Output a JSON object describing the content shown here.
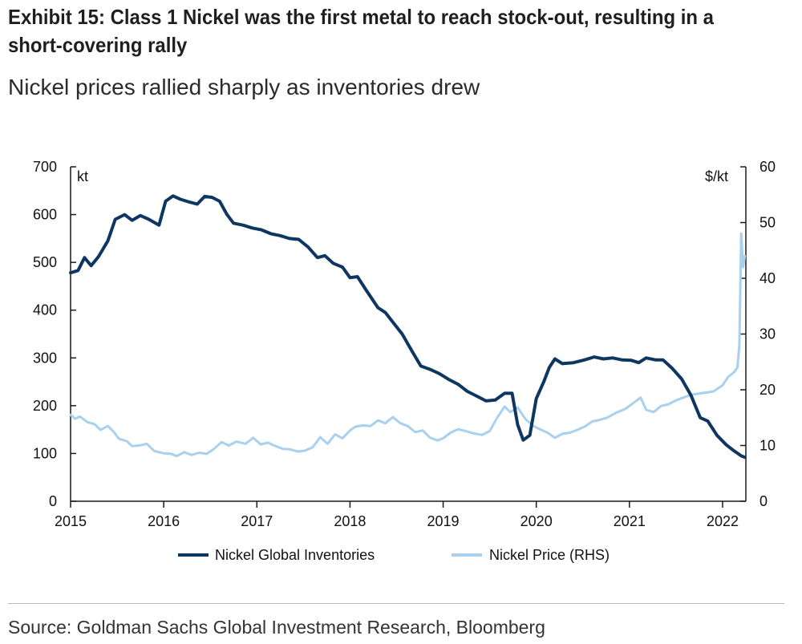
{
  "title": "Exhibit 15: Class 1 Nickel was the first metal to reach stock-out, resulting in a short-covering rally",
  "subtitle": "Nickel prices rallied sharply as inventories drew",
  "source": "Source: Goldman Sachs Global Investment Research, Bloomberg",
  "colors": {
    "inventories": "#0d3660",
    "price": "#a9d0ef",
    "axis": "#1a1a1a"
  },
  "chart_data": {
    "type": "line",
    "xlabel": "",
    "x_range": [
      2015.0,
      2022.25
    ],
    "x_ticks": [
      2015,
      2016,
      2017,
      2018,
      2019,
      2020,
      2021,
      2022
    ],
    "y_left": {
      "unit": "kt",
      "range": [
        0,
        700
      ],
      "ticks": [
        0,
        100,
        200,
        300,
        400,
        500,
        600,
        700
      ]
    },
    "y_right": {
      "unit": "$/kt",
      "range": [
        0,
        60
      ],
      "ticks": [
        0,
        10,
        20,
        30,
        40,
        50,
        60
      ]
    },
    "legend_position": "bottom",
    "series": [
      {
        "name": "Nickel Global Inventories",
        "axis": "left",
        "points": [
          [
            2015.0,
            478
          ],
          [
            2015.08,
            483
          ],
          [
            2015.15,
            510
          ],
          [
            2015.22,
            493
          ],
          [
            2015.3,
            512
          ],
          [
            2015.4,
            545
          ],
          [
            2015.48,
            590
          ],
          [
            2015.58,
            600
          ],
          [
            2015.66,
            588
          ],
          [
            2015.75,
            598
          ],
          [
            2015.84,
            590
          ],
          [
            2015.95,
            578
          ],
          [
            2016.02,
            628
          ],
          [
            2016.1,
            639
          ],
          [
            2016.18,
            632
          ],
          [
            2016.28,
            626
          ],
          [
            2016.36,
            622
          ],
          [
            2016.44,
            638
          ],
          [
            2016.52,
            636
          ],
          [
            2016.6,
            628
          ],
          [
            2016.68,
            600
          ],
          [
            2016.75,
            582
          ],
          [
            2016.85,
            578
          ],
          [
            2016.95,
            572
          ],
          [
            2017.05,
            568
          ],
          [
            2017.15,
            560
          ],
          [
            2017.25,
            556
          ],
          [
            2017.35,
            550
          ],
          [
            2017.45,
            548
          ],
          [
            2017.55,
            532
          ],
          [
            2017.65,
            510
          ],
          [
            2017.73,
            514
          ],
          [
            2017.82,
            498
          ],
          [
            2017.92,
            490
          ],
          [
            2018.0,
            468
          ],
          [
            2018.08,
            470
          ],
          [
            2018.18,
            440
          ],
          [
            2018.3,
            405
          ],
          [
            2018.38,
            395
          ],
          [
            2018.46,
            375
          ],
          [
            2018.56,
            350
          ],
          [
            2018.66,
            316
          ],
          [
            2018.76,
            283
          ],
          [
            2018.86,
            276
          ],
          [
            2018.96,
            267
          ],
          [
            2019.06,
            255
          ],
          [
            2019.16,
            245
          ],
          [
            2019.26,
            230
          ],
          [
            2019.36,
            220
          ],
          [
            2019.46,
            210
          ],
          [
            2019.56,
            212
          ],
          [
            2019.66,
            226
          ],
          [
            2019.74,
            226
          ],
          [
            2019.8,
            160
          ],
          [
            2019.86,
            128
          ],
          [
            2019.93,
            138
          ],
          [
            2020.0,
            215
          ],
          [
            2020.08,
            250
          ],
          [
            2020.14,
            280
          ],
          [
            2020.2,
            298
          ],
          [
            2020.28,
            288
          ],
          [
            2020.4,
            290
          ],
          [
            2020.52,
            296
          ],
          [
            2020.62,
            302
          ],
          [
            2020.72,
            298
          ],
          [
            2020.82,
            300
          ],
          [
            2020.92,
            296
          ],
          [
            2021.02,
            295
          ],
          [
            2021.1,
            290
          ],
          [
            2021.18,
            300
          ],
          [
            2021.28,
            296
          ],
          [
            2021.36,
            296
          ],
          [
            2021.46,
            278
          ],
          [
            2021.56,
            256
          ],
          [
            2021.66,
            222
          ],
          [
            2021.76,
            175
          ],
          [
            2021.84,
            168
          ],
          [
            2021.94,
            138
          ],
          [
            2022.04,
            118
          ],
          [
            2022.12,
            106
          ],
          [
            2022.2,
            95
          ],
          [
            2022.24,
            92
          ]
        ]
      },
      {
        "name": "Nickel Price (RHS)",
        "axis": "right",
        "points": [
          [
            2015.0,
            15.5
          ],
          [
            2015.05,
            14.8
          ],
          [
            2015.1,
            15.2
          ],
          [
            2015.18,
            14.2
          ],
          [
            2015.26,
            13.8
          ],
          [
            2015.32,
            12.8
          ],
          [
            2015.4,
            13.5
          ],
          [
            2015.46,
            12.5
          ],
          [
            2015.52,
            11.2
          ],
          [
            2015.6,
            10.8
          ],
          [
            2015.66,
            9.9
          ],
          [
            2015.74,
            10.0
          ],
          [
            2015.82,
            10.3
          ],
          [
            2015.9,
            9.0
          ],
          [
            2016.0,
            8.6
          ],
          [
            2016.08,
            8.5
          ],
          [
            2016.14,
            8.1
          ],
          [
            2016.22,
            8.8
          ],
          [
            2016.3,
            8.3
          ],
          [
            2016.38,
            8.7
          ],
          [
            2016.46,
            8.5
          ],
          [
            2016.54,
            9.4
          ],
          [
            2016.62,
            10.6
          ],
          [
            2016.7,
            10.0
          ],
          [
            2016.78,
            10.7
          ],
          [
            2016.88,
            10.3
          ],
          [
            2016.96,
            11.4
          ],
          [
            2017.04,
            10.2
          ],
          [
            2017.12,
            10.5
          ],
          [
            2017.2,
            9.9
          ],
          [
            2017.28,
            9.4
          ],
          [
            2017.36,
            9.3
          ],
          [
            2017.44,
            8.9
          ],
          [
            2017.52,
            9.1
          ],
          [
            2017.6,
            9.7
          ],
          [
            2017.68,
            11.5
          ],
          [
            2017.76,
            10.3
          ],
          [
            2017.84,
            12.0
          ],
          [
            2017.92,
            11.3
          ],
          [
            2018.0,
            12.7
          ],
          [
            2018.06,
            13.4
          ],
          [
            2018.14,
            13.6
          ],
          [
            2018.22,
            13.5
          ],
          [
            2018.3,
            14.5
          ],
          [
            2018.38,
            14.0
          ],
          [
            2018.46,
            15.1
          ],
          [
            2018.54,
            14.0
          ],
          [
            2018.62,
            13.5
          ],
          [
            2018.7,
            12.4
          ],
          [
            2018.78,
            12.7
          ],
          [
            2018.86,
            11.4
          ],
          [
            2018.94,
            10.9
          ],
          [
            2019.0,
            11.3
          ],
          [
            2019.08,
            12.3
          ],
          [
            2019.16,
            12.9
          ],
          [
            2019.24,
            12.6
          ],
          [
            2019.32,
            12.2
          ],
          [
            2019.42,
            11.9
          ],
          [
            2019.5,
            12.6
          ],
          [
            2019.58,
            15.0
          ],
          [
            2019.66,
            17.0
          ],
          [
            2019.72,
            16.0
          ],
          [
            2019.8,
            16.8
          ],
          [
            2019.88,
            14.8
          ],
          [
            2019.96,
            13.6
          ],
          [
            2020.04,
            12.9
          ],
          [
            2020.12,
            12.3
          ],
          [
            2020.2,
            11.4
          ],
          [
            2020.28,
            12.1
          ],
          [
            2020.36,
            12.3
          ],
          [
            2020.44,
            12.8
          ],
          [
            2020.52,
            13.4
          ],
          [
            2020.6,
            14.3
          ],
          [
            2020.68,
            14.6
          ],
          [
            2020.76,
            15.0
          ],
          [
            2020.86,
            15.9
          ],
          [
            2020.96,
            16.6
          ],
          [
            2021.04,
            17.6
          ],
          [
            2021.12,
            18.6
          ],
          [
            2021.18,
            16.4
          ],
          [
            2021.26,
            16.0
          ],
          [
            2021.34,
            17.1
          ],
          [
            2021.42,
            17.4
          ],
          [
            2021.5,
            18.1
          ],
          [
            2021.58,
            18.6
          ],
          [
            2021.66,
            19.1
          ],
          [
            2021.74,
            19.3
          ],
          [
            2021.82,
            19.5
          ],
          [
            2021.9,
            19.7
          ],
          [
            2022.0,
            20.8
          ],
          [
            2022.06,
            22.3
          ],
          [
            2022.12,
            23.1
          ],
          [
            2022.16,
            24.0
          ],
          [
            2022.18,
            28.0
          ],
          [
            2022.2,
            48.0
          ],
          [
            2022.22,
            42.0
          ],
          [
            2022.24,
            44.0
          ]
        ]
      }
    ]
  }
}
